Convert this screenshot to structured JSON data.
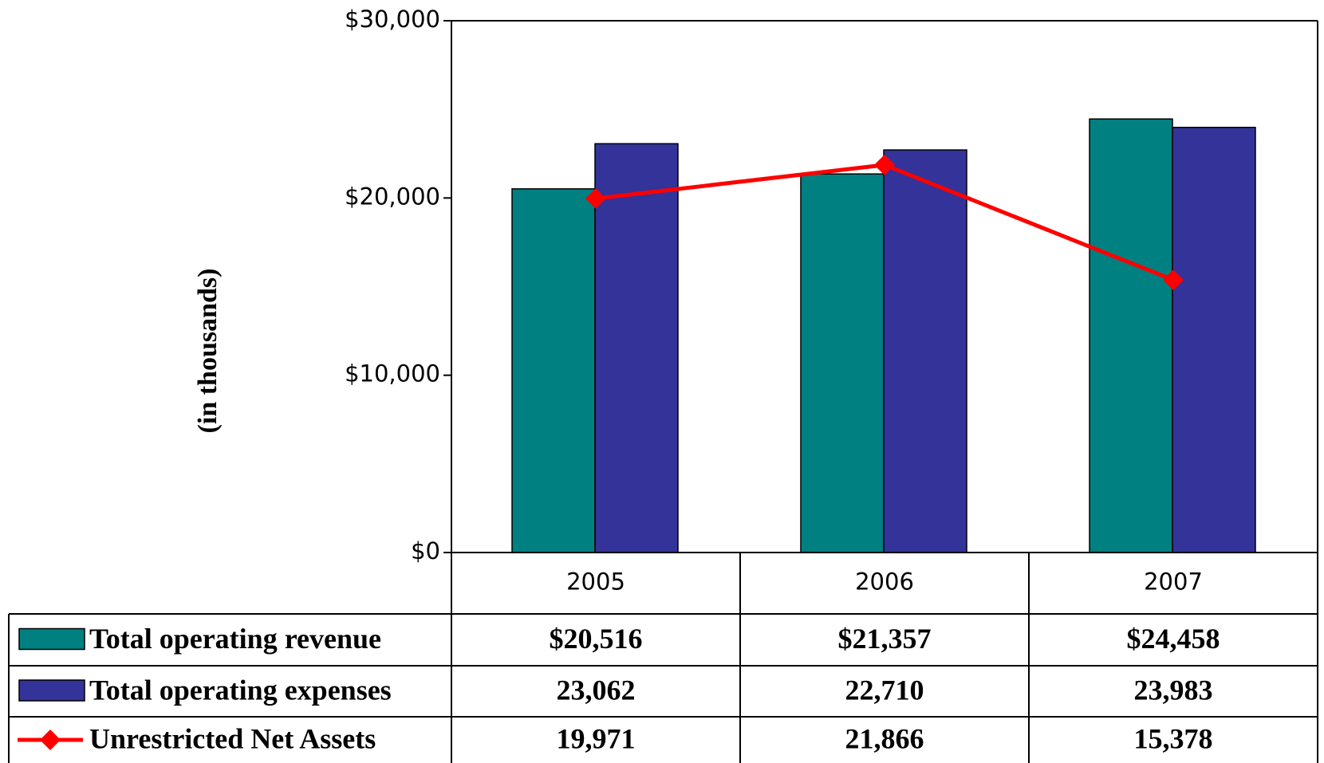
{
  "chart_data": {
    "type": "bar",
    "y_label": "(in thousands)",
    "categories": [
      "2005",
      "2006",
      "2007"
    ],
    "series": [
      {
        "name": "Total operating revenue",
        "type": "bar",
        "color": "#008080",
        "values": [
          20516,
          21357,
          24458
        ],
        "value_labels": [
          "$20,516",
          "$21,357",
          "$24,458"
        ]
      },
      {
        "name": "Total operating expenses",
        "type": "bar",
        "color": "#333399",
        "values": [
          23062,
          22710,
          23983
        ],
        "value_labels": [
          "23,062",
          "22,710",
          "23,983"
        ]
      },
      {
        "name": "Unrestricted Net Assets",
        "type": "line",
        "color": "#ff0000",
        "values": [
          19971,
          21866,
          15378
        ],
        "value_labels": [
          "19,971",
          "21,866",
          "15,378"
        ]
      }
    ],
    "ylim": [
      0,
      30000
    ],
    "yticks": [
      {
        "value": 0,
        "label": "$0"
      },
      {
        "value": 10000,
        "label": "$10,000"
      },
      {
        "value": 20000,
        "label": "$20,000"
      },
      {
        "value": 30000,
        "label": "$30,000"
      }
    ]
  }
}
